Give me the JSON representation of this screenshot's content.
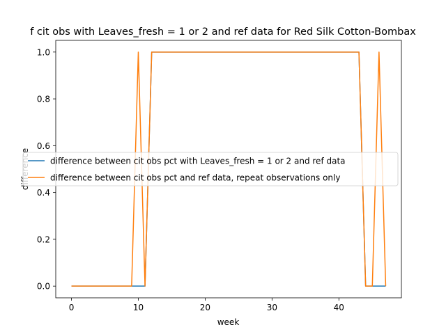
{
  "chart_data": {
    "type": "line",
    "title": "f cit obs with Leaves_fresh = 1 or 2 and ref data for Red Silk Cotton-Bombax",
    "xlabel": "week",
    "ylabel": "difference",
    "xlim": [
      -2.35,
      49.35
    ],
    "ylim": [
      -0.05,
      1.05
    ],
    "xticks": [
      0,
      10,
      20,
      30,
      40
    ],
    "yticks": [
      0.0,
      0.2,
      0.4,
      0.6,
      0.8,
      1.0
    ],
    "xtick_labels": [
      "0",
      "10",
      "20",
      "30",
      "40"
    ],
    "ytick_labels": [
      "0.0",
      "0.2",
      "0.4",
      "0.6",
      "0.8",
      "1.0"
    ],
    "grid": false,
    "legend_position": "center-left",
    "series": [
      {
        "name": "difference between cit obs pct with Leaves_fresh = 1 or 2 and ref data",
        "color": "#1f77b4",
        "x": [
          0,
          1,
          2,
          3,
          4,
          5,
          6,
          7,
          8,
          9,
          10,
          11,
          12,
          13,
          14,
          15,
          16,
          17,
          18,
          19,
          20,
          21,
          22,
          23,
          24,
          25,
          26,
          27,
          28,
          29,
          30,
          31,
          32,
          33,
          34,
          35,
          36,
          37,
          38,
          39,
          40,
          41,
          42,
          43,
          44,
          45,
          46,
          47
        ],
        "y": [
          0,
          0,
          0,
          0,
          0,
          0,
          0,
          0,
          0,
          0,
          0,
          0,
          1,
          1,
          1,
          1,
          1,
          1,
          1,
          1,
          1,
          1,
          1,
          1,
          1,
          1,
          1,
          1,
          1,
          1,
          1,
          1,
          1,
          1,
          1,
          1,
          1,
          1,
          1,
          1,
          1,
          1,
          1,
          1,
          0,
          0,
          0,
          0
        ]
      },
      {
        "name": "difference between cit obs pct and ref data, repeat observations only",
        "color": "#ff7f0e",
        "x": [
          0,
          1,
          2,
          3,
          4,
          5,
          6,
          7,
          8,
          9,
          10,
          11,
          12,
          13,
          14,
          15,
          16,
          17,
          18,
          19,
          20,
          21,
          22,
          23,
          24,
          25,
          26,
          27,
          28,
          29,
          30,
          31,
          32,
          33,
          34,
          35,
          36,
          37,
          38,
          39,
          40,
          41,
          42,
          43,
          44,
          45,
          46,
          47
        ],
        "y": [
          0,
          0,
          0,
          0,
          0,
          0,
          0,
          0,
          0,
          0,
          1,
          0,
          1,
          1,
          1,
          1,
          1,
          1,
          1,
          1,
          1,
          1,
          1,
          1,
          1,
          1,
          1,
          1,
          1,
          1,
          1,
          1,
          1,
          1,
          1,
          1,
          1,
          1,
          1,
          1,
          1,
          1,
          1,
          1,
          0,
          0,
          1,
          0
        ]
      }
    ]
  }
}
